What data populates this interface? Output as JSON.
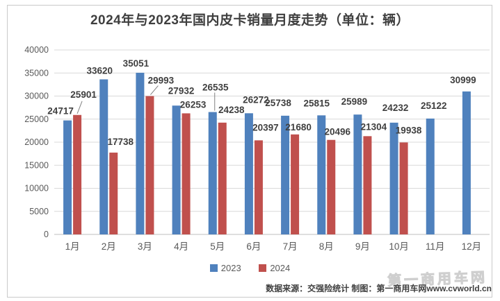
{
  "title": "2024年与2023年国内皮卡销量月度走势（单位：辆）",
  "footer": {
    "text": "数据来源：交强险统计 制图：第一商用车网www.cvworld.cn",
    "watermark": "第一商用车网"
  },
  "colors": {
    "series_2023": "#4f81bd",
    "series_2024": "#c0504d",
    "gridline": "#d9d9d9",
    "axis_line": "#bfbfbf",
    "axis_text": "#595959",
    "data_label": "#3f3f3f"
  },
  "chart_data": {
    "type": "bar",
    "categories": [
      "1月",
      "2月",
      "3月",
      "4月",
      "5月",
      "6月",
      "7月",
      "8月",
      "9月",
      "10月",
      "11月",
      "12月"
    ],
    "series": [
      {
        "name": "2023",
        "color": "#4f81bd",
        "values": [
          24717,
          33620,
          35051,
          27932,
          26535,
          26272,
          25738,
          25815,
          25989,
          24232,
          25122,
          30999
        ]
      },
      {
        "name": "2024",
        "color": "#c0504d",
        "values": [
          25901,
          17738,
          29993,
          26253,
          24238,
          20397,
          21680,
          20496,
          21304,
          19938,
          null,
          null
        ]
      }
    ],
    "title": "2024年与2023年国内皮卡销量月度走势（单位：辆）",
    "xlabel": "",
    "ylabel": "",
    "ylim": [
      0,
      40000
    ],
    "yticks": [
      0,
      5000,
      10000,
      15000,
      20000,
      25000,
      30000,
      35000,
      40000
    ],
    "grid": true,
    "legend_position": "bottom",
    "data_labels": true
  }
}
